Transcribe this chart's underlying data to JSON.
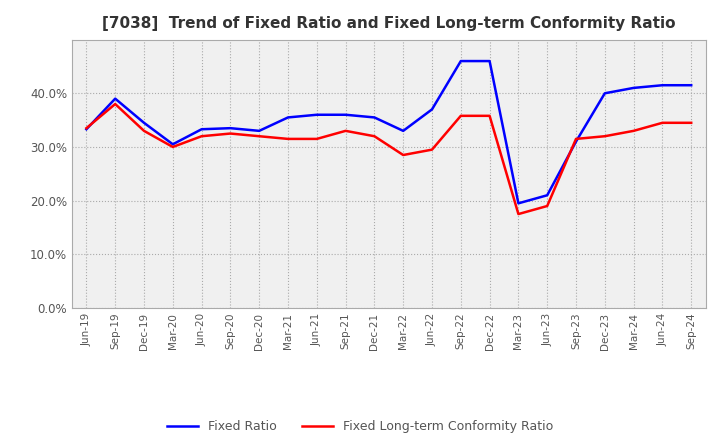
{
  "title": "[7038]  Trend of Fixed Ratio and Fixed Long-term Conformity Ratio",
  "x_labels": [
    "Jun-19",
    "Sep-19",
    "Dec-19",
    "Mar-20",
    "Jun-20",
    "Sep-20",
    "Dec-20",
    "Mar-21",
    "Jun-21",
    "Sep-21",
    "Dec-21",
    "Mar-22",
    "Jun-22",
    "Sep-22",
    "Dec-22",
    "Mar-23",
    "Jun-23",
    "Sep-23",
    "Dec-23",
    "Mar-24",
    "Jun-24",
    "Sep-24"
  ],
  "fixed_ratio": [
    0.333,
    0.39,
    0.345,
    0.305,
    0.333,
    0.335,
    0.33,
    0.355,
    0.36,
    0.36,
    0.355,
    0.33,
    0.37,
    0.46,
    0.46,
    0.195,
    0.21,
    0.31,
    0.4,
    0.41,
    0.415,
    0.415
  ],
  "fixed_lt_ratio": [
    0.335,
    0.38,
    0.33,
    0.3,
    0.32,
    0.325,
    0.32,
    0.315,
    0.315,
    0.33,
    0.32,
    0.285,
    0.295,
    0.358,
    0.358,
    0.175,
    0.19,
    0.315,
    0.32,
    0.33,
    0.345,
    0.345
  ],
  "fixed_ratio_color": "#0000ff",
  "fixed_lt_ratio_color": "#ff0000",
  "ylim_min": 0.0,
  "ylim_max": 0.5,
  "yticks": [
    0.0,
    0.1,
    0.2,
    0.3,
    0.4
  ],
  "background_color": "#ffffff",
  "plot_bg_color": "#f0f0f0",
  "grid_color": "#aaaaaa",
  "spine_color": "#aaaaaa",
  "tick_color": "#555555",
  "title_color": "#333333",
  "legend_labels": [
    "Fixed Ratio",
    "Fixed Long-term Conformity Ratio"
  ],
  "legend_color": "#555555"
}
